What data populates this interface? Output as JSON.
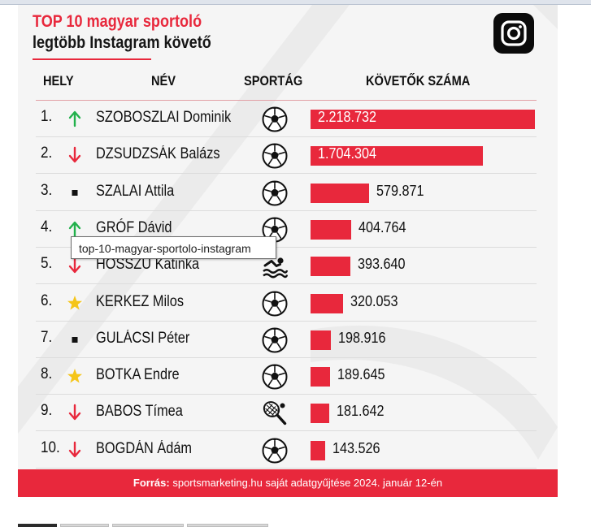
{
  "title": "TOP 10 magyar sportoló",
  "subtitle": "legtöbb Instagram követő",
  "logo_icon": "instagram-icon",
  "headers": {
    "rank": "HELY",
    "name": "NÉV",
    "sport": "SPORTÁG",
    "followers": "KÖVETŐK SZÁMA"
  },
  "colors": {
    "accent": "#e8283c",
    "up": "#22b14c",
    "down": "#e8283c",
    "new": "#f5c518",
    "same": "#111111"
  },
  "tooltip": "top-10-magyar-sportolo-instagram",
  "footer": {
    "label": "Forrás:",
    "text": "sportsmarketing.hu saját adatgyűjtése 2024. január 12-én"
  },
  "chart_data": {
    "type": "bar",
    "orientation": "horizontal",
    "title": "TOP 10 magyar sportoló",
    "subtitle": "legtöbb Instagram követő",
    "categories": [
      "SZOBOSZLAI Dominik",
      "DZSUDZSÁK Balázs",
      "SZALAI Attila",
      "GRÓF Dávid",
      "HOSSZU Katinka",
      "KERKEZ Milos",
      "GULÁCSI Péter",
      "BOTKA Endre",
      "BABOS Tímea",
      "BOGDÁN Ádám"
    ],
    "values": [
      2218732,
      1704304,
      579871,
      404764,
      393640,
      320053,
      198916,
      189645,
      181642,
      143526
    ],
    "rows": [
      {
        "rank": "1.",
        "trend": "up",
        "trend_icon": "arrow-up-icon",
        "name": "SZOBOSZLAI Dominik",
        "sport_icon": "soccer-ball-icon",
        "value": 2218732,
        "label": "2.218.732"
      },
      {
        "rank": "2.",
        "trend": "down",
        "trend_icon": "arrow-down-icon",
        "name": "DZSUDZSÁK Balázs",
        "sport_icon": "soccer-ball-icon",
        "value": 1704304,
        "label": "1.704.304"
      },
      {
        "rank": "3.",
        "trend": "same",
        "trend_icon": "square-icon",
        "name": "SZALAI Attila",
        "sport_icon": "soccer-ball-icon",
        "value": 579871,
        "label": "579.871"
      },
      {
        "rank": "4.",
        "trend": "up",
        "trend_icon": "arrow-up-icon",
        "name": "GRÓF Dávid",
        "sport_icon": "soccer-ball-icon",
        "value": 404764,
        "label": "404.764"
      },
      {
        "rank": "5.",
        "trend": "down",
        "trend_icon": "arrow-down-icon",
        "name": "HOSSZU Katinka",
        "sport_icon": "swimmer-icon",
        "value": 393640,
        "label": "393.640"
      },
      {
        "rank": "6.",
        "trend": "new",
        "trend_icon": "star-icon",
        "name": "KERKEZ Milos",
        "sport_icon": "soccer-ball-icon",
        "value": 320053,
        "label": "320.053"
      },
      {
        "rank": "7.",
        "trend": "same",
        "trend_icon": "square-icon",
        "name": "GULÁCSI Péter",
        "sport_icon": "soccer-ball-icon",
        "value": 198916,
        "label": "198.916"
      },
      {
        "rank": "8.",
        "trend": "new",
        "trend_icon": "star-icon",
        "name": "BOTKA Endre",
        "sport_icon": "soccer-ball-icon",
        "value": 189645,
        "label": "189.645"
      },
      {
        "rank": "9.",
        "trend": "down",
        "trend_icon": "arrow-down-icon",
        "name": "BABOS Tímea",
        "sport_icon": "tennis-racket-icon",
        "value": 181642,
        "label": "181.642"
      },
      {
        "rank": "10.",
        "trend": "down",
        "trend_icon": "arrow-down-icon",
        "name": "BOGDÁN Ádám",
        "sport_icon": "soccer-ball-icon",
        "value": 143526,
        "label": "143.526"
      }
    ],
    "grid": false,
    "legend": "none"
  }
}
